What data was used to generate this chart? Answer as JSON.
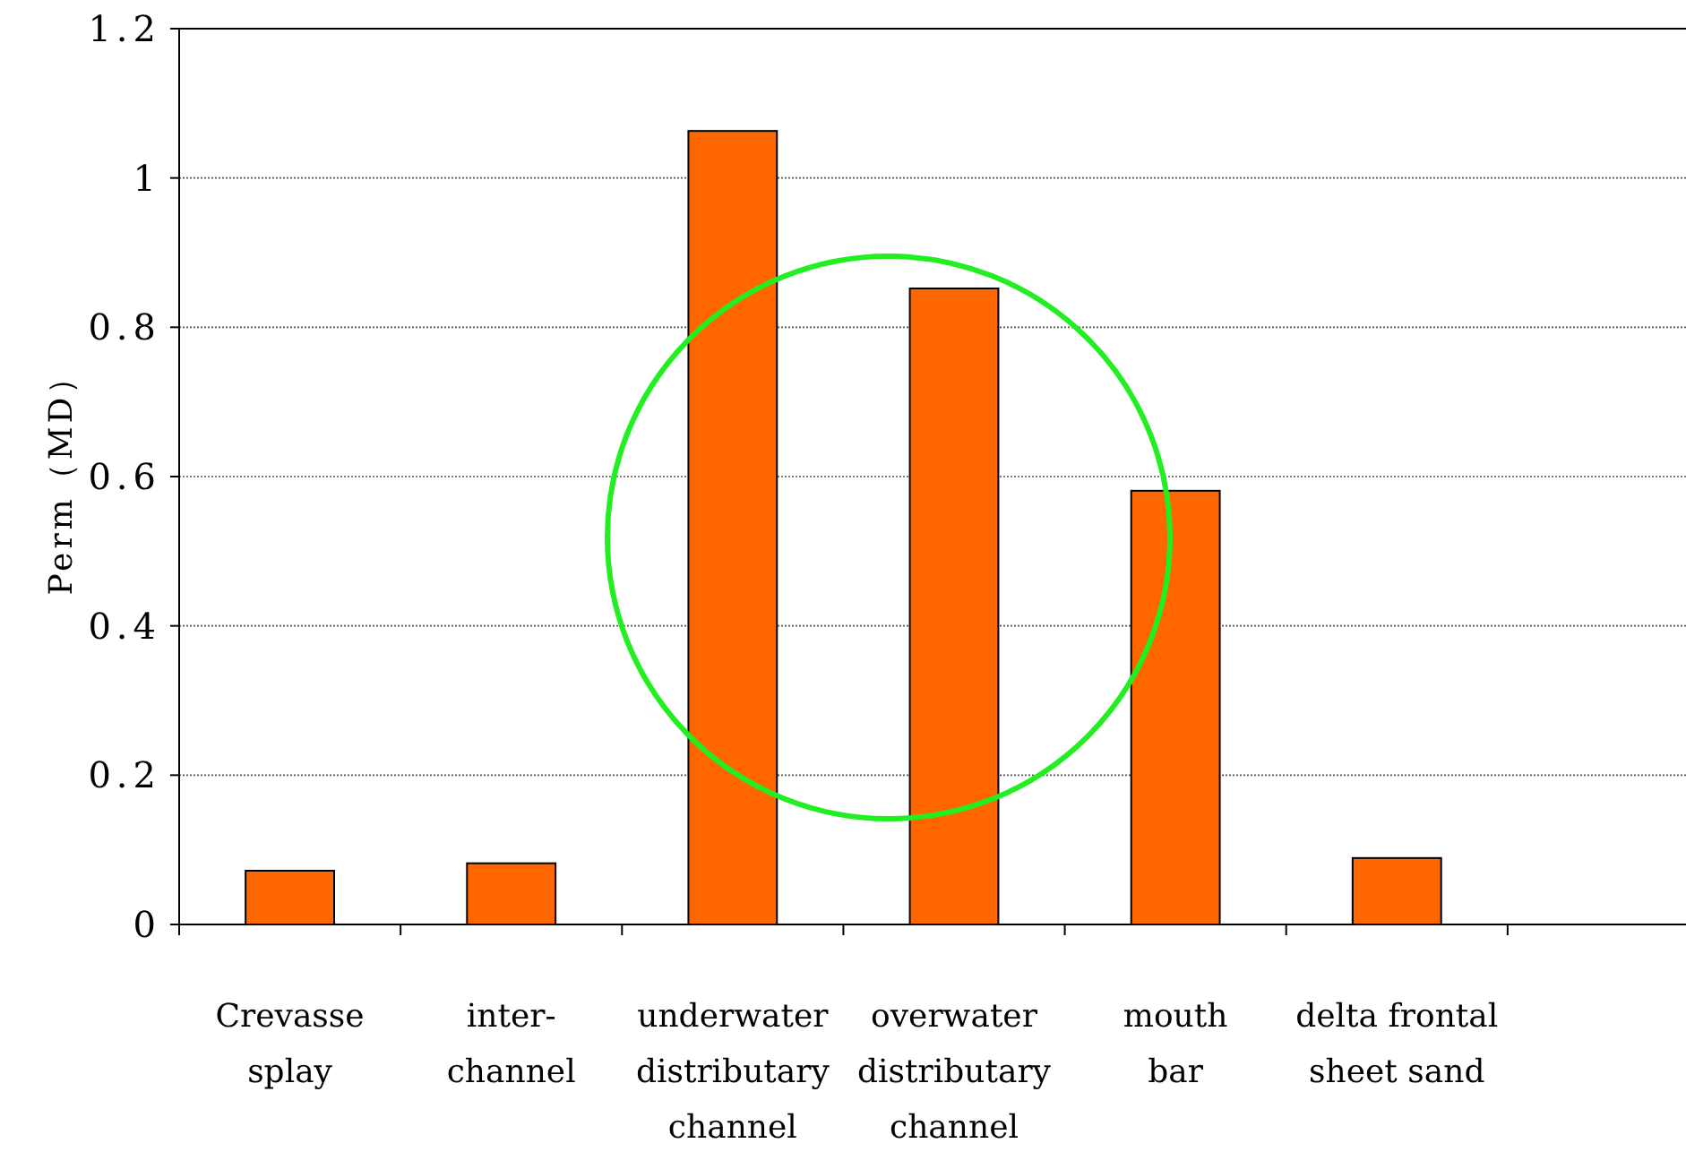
{
  "chart_data": {
    "type": "bar",
    "ylabel": "Perm（MD）",
    "categories": [
      "Crevasse\nsplay",
      "inter-\nchannel",
      "underwater\ndistributary\nchannel",
      "overwater\ndistributary\nchannel",
      "mouth\nbar",
      "delta frontal\nsheet sand",
      null
    ],
    "values": [
      0.072,
      0.082,
      1.063,
      0.852,
      0.581,
      0.089,
      null
    ],
    "color": "#ff6600",
    "ylim": [
      0,
      1.2
    ],
    "yticks": [
      0,
      0.2,
      0.4,
      0.6,
      0.8,
      1,
      1.2
    ],
    "grid": "y"
  }
}
